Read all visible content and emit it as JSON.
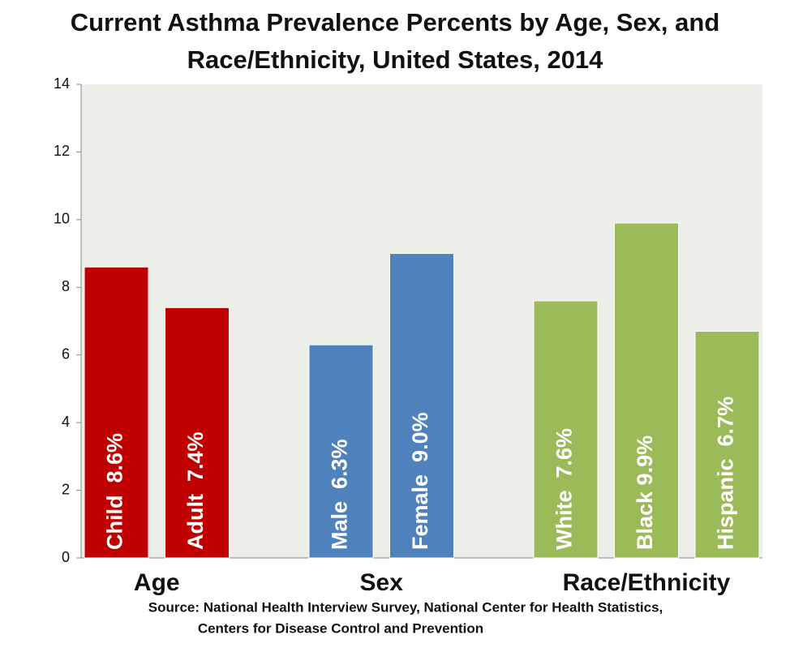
{
  "chart_data": {
    "type": "bar",
    "title": "Current Asthma Prevalence Percents by Age, Sex, and",
    "subtitle": "Race/Ethnicity, United States, 2014",
    "series": [
      {
        "name": "Age",
        "color": "#c00000",
        "values": [
          8.6,
          7.4
        ],
        "value_labels": [
          "Child  8.6%",
          "Adult  7.4%"
        ]
      },
      {
        "name": "Sex",
        "color": "#4f81bd",
        "values": [
          6.3,
          9.0
        ],
        "value_labels": [
          "Male  6.3%",
          "Female  9.0%"
        ]
      },
      {
        "name": "Race/Ethnicity",
        "color": "#9bbb59",
        "values": [
          7.6,
          9.9,
          6.7
        ],
        "value_labels": [
          "White  7.6%",
          "Black 9.9%",
          "Hispanic  6.7%"
        ]
      }
    ],
    "ylim": [
      0,
      14
    ],
    "yticks": [
      0,
      2,
      4,
      6,
      8,
      10,
      12,
      14
    ],
    "source": [
      "Source: National Health Interview Survey, National Center for Health Statistics,",
      "Centers for Disease Control and Prevention"
    ]
  }
}
